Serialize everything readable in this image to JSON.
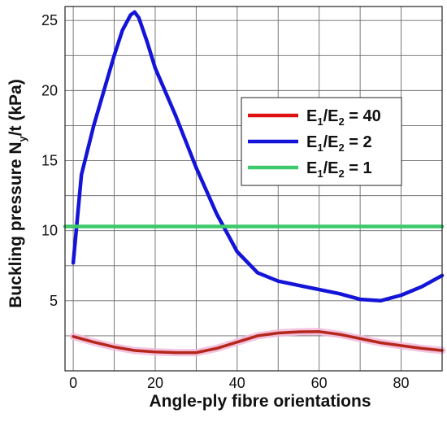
{
  "chart_data": {
    "type": "line",
    "xlabel": "Angle-ply fibre orientations",
    "ylabel_main": "Buckling pressure N",
    "ylabel_sub": "y",
    "ylabel_rest": "/t (kPa)",
    "xlim": [
      -2,
      90
    ],
    "ylim": [
      0,
      26
    ],
    "x_ticks": [
      0,
      20,
      40,
      60,
      80
    ],
    "x_minor_ticks": [
      10,
      30,
      50,
      70,
      90
    ],
    "y_ticks": [
      5,
      10,
      15,
      20,
      25
    ],
    "y_minor_ticks": [
      2.5,
      7.5,
      12.5,
      17.5,
      22.5
    ],
    "grid": true,
    "legend_position": "right",
    "legend": [
      {
        "prefix": "E",
        "sub1": "1",
        "mid": "/E",
        "sub2": "2",
        "suffix": " = 40",
        "color": "#dd1111"
      },
      {
        "prefix": "E",
        "sub1": "1",
        "mid": "/E",
        "sub2": "2",
        "suffix": " = 2",
        "color": "#1414d8"
      },
      {
        "prefix": "E",
        "sub1": "1",
        "mid": "/E",
        "sub2": "2",
        "suffix": " = 1",
        "color": "#3dc86a"
      }
    ],
    "series": [
      {
        "name": "E1/E2 = 40",
        "color": "#b5271b",
        "halo": "#f2b9d9",
        "x": [
          0,
          5,
          10,
          15,
          20,
          25,
          30,
          35,
          40,
          45,
          50,
          55,
          60,
          65,
          70,
          75,
          80,
          85,
          90
        ],
        "y": [
          2.45,
          2.05,
          1.7,
          1.45,
          1.35,
          1.3,
          1.3,
          1.6,
          2.05,
          2.5,
          2.7,
          2.78,
          2.8,
          2.6,
          2.3,
          2.0,
          1.8,
          1.6,
          1.45
        ]
      },
      {
        "name": "E1/E2 = 2",
        "color": "#1414d8",
        "x": [
          0,
          2,
          5,
          8,
          10,
          12,
          14,
          15,
          16,
          18,
          20,
          25,
          30,
          35,
          40,
          45,
          50,
          55,
          60,
          65,
          70,
          75,
          80,
          85,
          90
        ],
        "y": [
          7.7,
          14.0,
          17.5,
          20.5,
          22.5,
          24.3,
          25.4,
          25.6,
          25.2,
          23.5,
          21.6,
          18.2,
          14.5,
          11.2,
          8.5,
          7.0,
          6.4,
          6.1,
          5.8,
          5.5,
          5.1,
          5.0,
          5.4,
          6.0,
          6.8
        ]
      },
      {
        "name": "E1/E2 = 1",
        "color": "#3dc86a",
        "x": [
          -2,
          90
        ],
        "y": [
          10.3,
          10.3
        ]
      }
    ]
  }
}
